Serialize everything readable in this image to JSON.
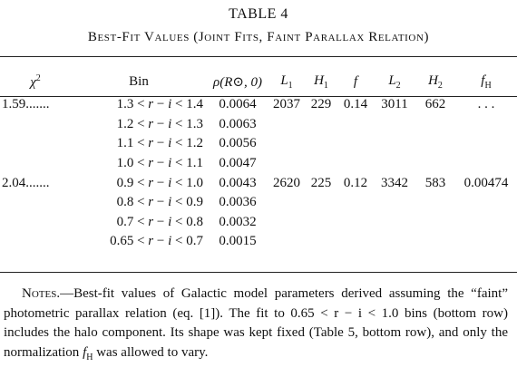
{
  "title": "TABLE 4",
  "subtitle": "Best-Fit Values (Joint Fits, Faint Parallax Relation)",
  "table": {
    "header": [
      {
        "text": "χ",
        "sup": "2"
      },
      {
        "text": "Bin"
      },
      {
        "text": "ρ(R⊙, 0)"
      },
      {
        "text": "L",
        "sub": "1"
      },
      {
        "text": "H",
        "sub": "1"
      },
      {
        "text": "f"
      },
      {
        "text": "L",
        "sub": "2"
      },
      {
        "text": "H",
        "sub": "2"
      },
      {
        "text": "f",
        "sub": "H"
      }
    ],
    "rows": [
      [
        "1.59.......",
        "1.3 < r − i < 1.4",
        "0.0064",
        "2037",
        "229",
        "0.14",
        "3011",
        "662",
        ". . ."
      ],
      [
        null,
        "1.2 < r − i < 1.3",
        "0.0063",
        null,
        null,
        null,
        null,
        null,
        null
      ],
      [
        null,
        "1.1 < r − i < 1.2",
        "0.0056",
        null,
        null,
        null,
        null,
        null,
        null
      ],
      [
        null,
        "1.0 < r − i < 1.1",
        "0.0047",
        null,
        null,
        null,
        null,
        null,
        null
      ],
      [
        "2.04.......",
        "0.9 < r − i < 1.0",
        "0.0043",
        "2620",
        "225",
        "0.12",
        "3342",
        "583",
        "0.00474"
      ],
      [
        null,
        "0.8 < r − i < 0.9",
        "0.0036",
        null,
        null,
        null,
        null,
        null,
        null
      ],
      [
        null,
        "0.7 < r − i < 0.8",
        "0.0032",
        null,
        null,
        null,
        null,
        null,
        null
      ],
      [
        null,
        "0.65 < r − i < 0.7",
        "0.0015",
        null,
        null,
        null,
        null,
        null,
        null
      ]
    ]
  },
  "notes": {
    "label": "Notes.",
    "text_1": "—Best-fit values of Galactic model parameters derived assuming the “faint” photometric parallax relation (eq. [1]). The fit to 0.65 < r − i < 1.0 bins (bottom row) includes the halo component. Its shape was kept fixed (Table 5, bottom row), and only the normalization ",
    "symbol": "f",
    "symbol_sub": "H",
    "text_2": " was allowed to vary."
  }
}
